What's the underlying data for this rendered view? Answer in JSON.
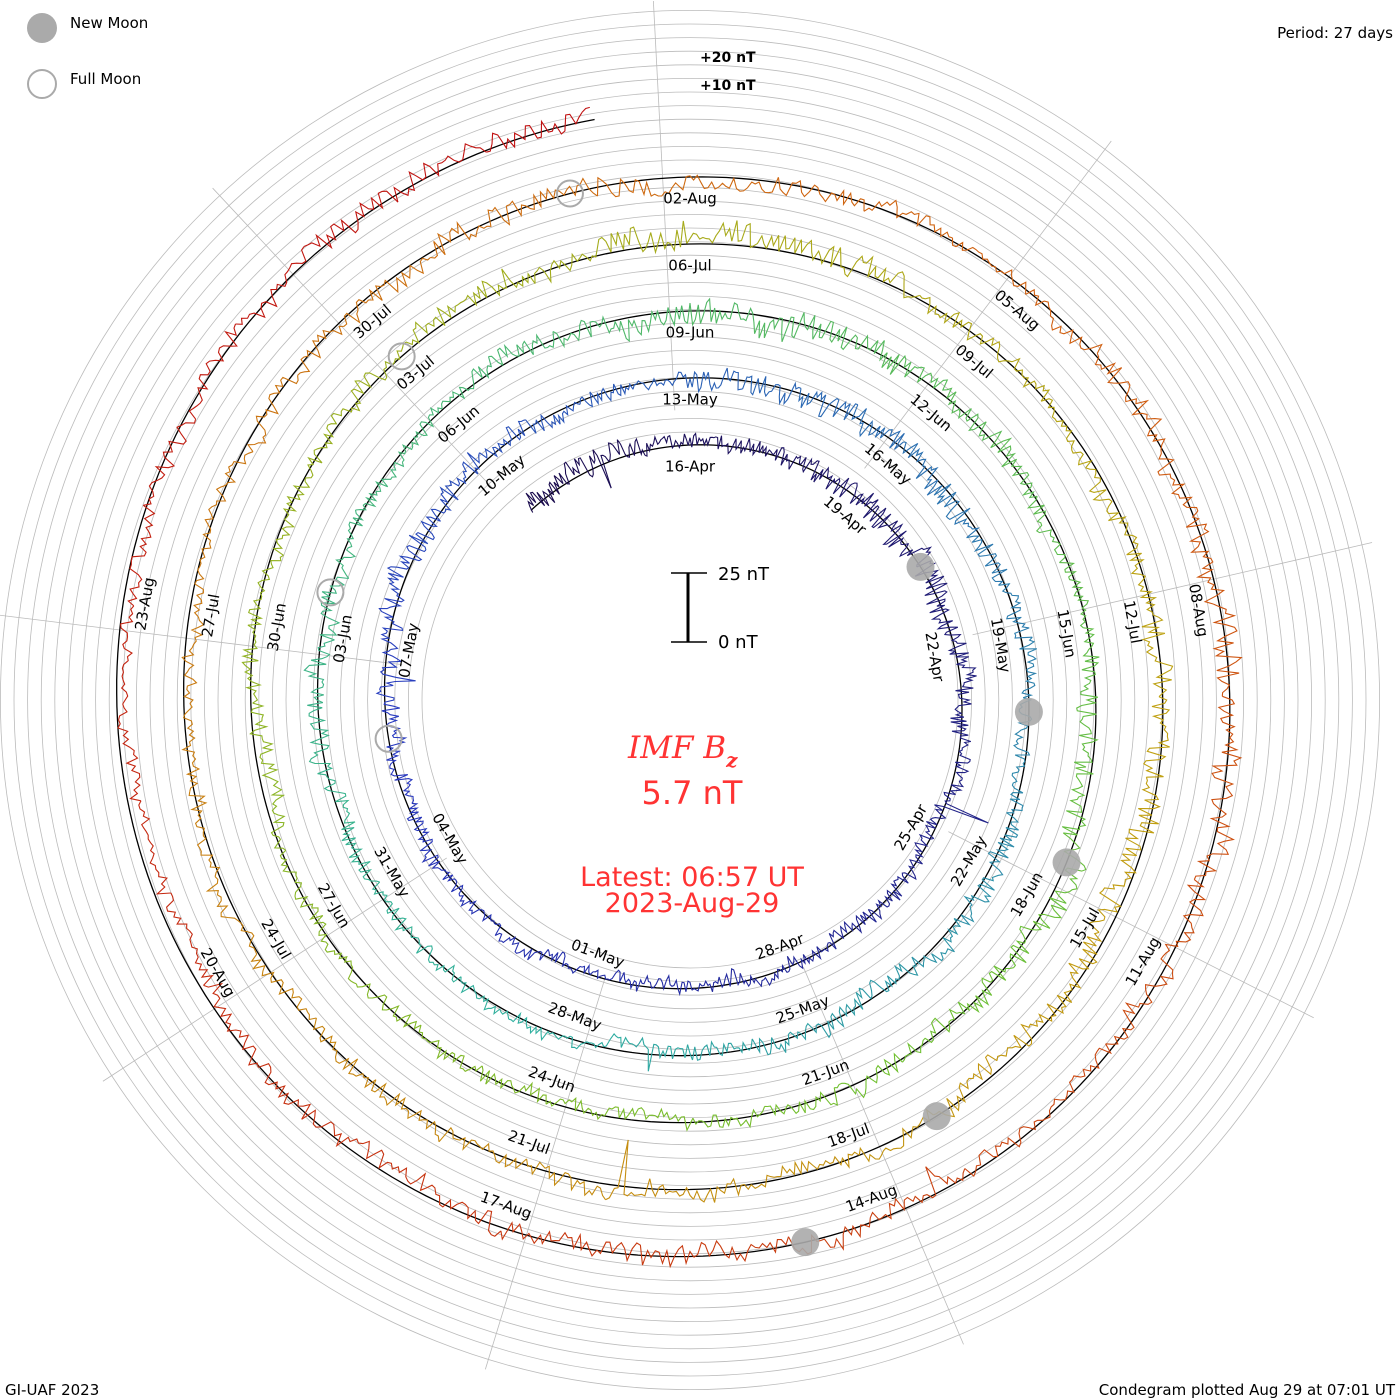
{
  "legend": {
    "new_moon": "New Moon",
    "full_moon": "Full Moon"
  },
  "period_text": "Period: 27 days",
  "footer_left": "GI-UAF 2023",
  "footer_right": "Condegram plotted Aug 29 at 07:01 UT",
  "colors": {
    "new_moon_fill": "#aaaaaa",
    "full_moon_stroke": "#aaaaaa",
    "title": "#ff3333",
    "baseline": "#000000",
    "grid": "#bbbbbb"
  },
  "chart_data": {
    "type": "line",
    "layout": "spiral condegram",
    "title": "IMF Bz",
    "title_main": "IMF B",
    "title_sub": "z",
    "current_value": "5.7 nT",
    "latest_label": "Latest: 06:57 UT",
    "latest_date": "2023-Aug-29",
    "period_days": 27,
    "start_day": -3,
    "end_day": 134.3,
    "day_zero": "16-Apr",
    "units": "nT",
    "scale_bar": {
      "top_label": "25 nT",
      "bottom_label": "0 nT",
      "top_value": 25,
      "bottom_value": 0
    },
    "ring_labels": [
      {
        "text": "+20 nT",
        "value": 20
      },
      {
        "text": "+10 nT",
        "value": 10
      }
    ],
    "series": [
      {
        "name": "IMF Bz",
        "color_scale": [
          "#1a0a4a",
          "#2838c0",
          "#30b0a0",
          "#70c030",
          "#c0a010",
          "#d06010",
          "#c01010"
        ]
      }
    ],
    "date_labels": [
      {
        "text": "16-Apr",
        "day": 0
      },
      {
        "text": "19-Apr",
        "day": 3
      },
      {
        "text": "22-Apr",
        "day": 6
      },
      {
        "text": "25-Apr",
        "day": 9
      },
      {
        "text": "28-Apr",
        "day": 12
      },
      {
        "text": "01-May",
        "day": 15
      },
      {
        "text": "04-May",
        "day": 18
      },
      {
        "text": "07-May",
        "day": 21
      },
      {
        "text": "10-May",
        "day": 24
      },
      {
        "text": "13-May",
        "day": 27
      },
      {
        "text": "16-May",
        "day": 30
      },
      {
        "text": "19-May",
        "day": 33
      },
      {
        "text": "22-May",
        "day": 36
      },
      {
        "text": "25-May",
        "day": 39
      },
      {
        "text": "28-May",
        "day": 42
      },
      {
        "text": "31-May",
        "day": 45
      },
      {
        "text": "03-Jun",
        "day": 48
      },
      {
        "text": "06-Jun",
        "day": 51
      },
      {
        "text": "09-Jun",
        "day": 54
      },
      {
        "text": "12-Jun",
        "day": 57
      },
      {
        "text": "15-Jun",
        "day": 60
      },
      {
        "text": "18-Jun",
        "day": 63
      },
      {
        "text": "21-Jun",
        "day": 66
      },
      {
        "text": "24-Jun",
        "day": 69
      },
      {
        "text": "27-Jun",
        "day": 72
      },
      {
        "text": "30-Jun",
        "day": 75
      },
      {
        "text": "03-Jul",
        "day": 78
      },
      {
        "text": "06-Jul",
        "day": 81
      },
      {
        "text": "09-Jul",
        "day": 84
      },
      {
        "text": "12-Jul",
        "day": 87
      },
      {
        "text": "15-Jul",
        "day": 90
      },
      {
        "text": "18-Jul",
        "day": 93
      },
      {
        "text": "21-Jul",
        "day": 96
      },
      {
        "text": "24-Jul",
        "day": 99
      },
      {
        "text": "27-Jul",
        "day": 102
      },
      {
        "text": "30-Jul",
        "day": 105
      },
      {
        "text": "02-Aug",
        "day": 108
      },
      {
        "text": "05-Aug",
        "day": 111
      },
      {
        "text": "08-Aug",
        "day": 114
      },
      {
        "text": "11-Aug",
        "day": 117
      },
      {
        "text": "14-Aug",
        "day": 120
      },
      {
        "text": "17-Aug",
        "day": 123
      },
      {
        "text": "20-Aug",
        "day": 126
      },
      {
        "text": "23-Aug",
        "day": 129
      }
    ],
    "new_moons_day": [
      4.5,
      33.9,
      62.5,
      92.2,
      120.6
    ],
    "full_moons_day": [
      19.7,
      48.5,
      78.0,
      107.0
    ]
  }
}
